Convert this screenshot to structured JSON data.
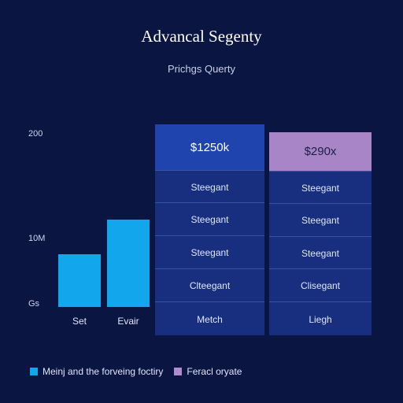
{
  "chart_data": {
    "type": "bar",
    "title": "Advancal Segenty",
    "subtitle": "Prichgs Querty",
    "y_ticks": [
      "200",
      "10M",
      "Gs"
    ],
    "categories": [
      "Set",
      "Evair"
    ],
    "values": [
      1,
      1.65
    ],
    "table": {
      "columns": [
        {
          "header": "$1250k",
          "cells": [
            "Steegant",
            "Steegant",
            "Steegant",
            "Clteegant"
          ],
          "footer": "Metch"
        },
        {
          "header": "$290x",
          "cells": [
            "Steegant",
            "Steegant",
            "Steegant",
            "Clisegant"
          ],
          "footer": "Liegh"
        }
      ]
    },
    "legend": [
      {
        "label": "Meinj and the forveing foctiry",
        "color": "#12a6ec"
      },
      {
        "label": "Feracl oryate",
        "color": "#b08bd0"
      }
    ],
    "legend_position": "bottom-left"
  },
  "colors": {
    "background": "#0b1541",
    "bar": "#12a6ec",
    "panel": "#172f7e",
    "panel_header_1": "#1f44ae",
    "panel_header_2": "#a885c6"
  }
}
